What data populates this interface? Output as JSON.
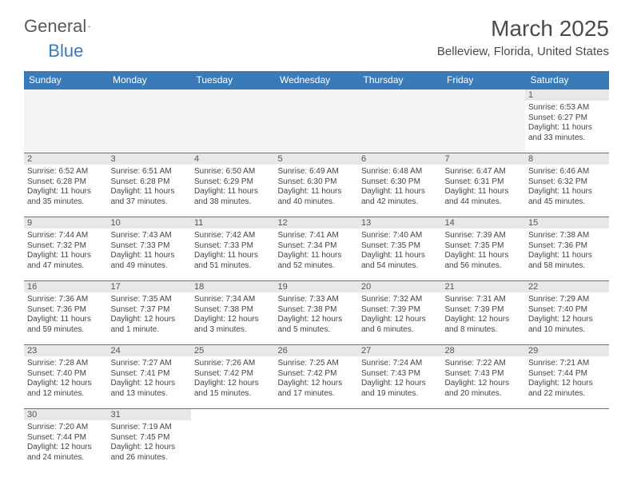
{
  "logo": {
    "general": "General",
    "blue": "Blue"
  },
  "title": "March 2025",
  "location": "Belleview, Florida, United States",
  "colors": {
    "header_bg": "#3b7ab8",
    "header_text": "#ffffff",
    "daynum_bg": "#e8e8e8",
    "border": "#3b7ab8",
    "text": "#333333",
    "title_text": "#4a4a4a"
  },
  "weekdays": [
    "Sunday",
    "Monday",
    "Tuesday",
    "Wednesday",
    "Thursday",
    "Friday",
    "Saturday"
  ],
  "weeks": [
    [
      {
        "day": null
      },
      {
        "day": null
      },
      {
        "day": null
      },
      {
        "day": null
      },
      {
        "day": null
      },
      {
        "day": null
      },
      {
        "day": "1",
        "sunrise": "Sunrise: 6:53 AM",
        "sunset": "Sunset: 6:27 PM",
        "daylight": "Daylight: 11 hours and 33 minutes."
      }
    ],
    [
      {
        "day": "2",
        "sunrise": "Sunrise: 6:52 AM",
        "sunset": "Sunset: 6:28 PM",
        "daylight": "Daylight: 11 hours and 35 minutes."
      },
      {
        "day": "3",
        "sunrise": "Sunrise: 6:51 AM",
        "sunset": "Sunset: 6:28 PM",
        "daylight": "Daylight: 11 hours and 37 minutes."
      },
      {
        "day": "4",
        "sunrise": "Sunrise: 6:50 AM",
        "sunset": "Sunset: 6:29 PM",
        "daylight": "Daylight: 11 hours and 38 minutes."
      },
      {
        "day": "5",
        "sunrise": "Sunrise: 6:49 AM",
        "sunset": "Sunset: 6:30 PM",
        "daylight": "Daylight: 11 hours and 40 minutes."
      },
      {
        "day": "6",
        "sunrise": "Sunrise: 6:48 AM",
        "sunset": "Sunset: 6:30 PM",
        "daylight": "Daylight: 11 hours and 42 minutes."
      },
      {
        "day": "7",
        "sunrise": "Sunrise: 6:47 AM",
        "sunset": "Sunset: 6:31 PM",
        "daylight": "Daylight: 11 hours and 44 minutes."
      },
      {
        "day": "8",
        "sunrise": "Sunrise: 6:46 AM",
        "sunset": "Sunset: 6:32 PM",
        "daylight": "Daylight: 11 hours and 45 minutes."
      }
    ],
    [
      {
        "day": "9",
        "sunrise": "Sunrise: 7:44 AM",
        "sunset": "Sunset: 7:32 PM",
        "daylight": "Daylight: 11 hours and 47 minutes."
      },
      {
        "day": "10",
        "sunrise": "Sunrise: 7:43 AM",
        "sunset": "Sunset: 7:33 PM",
        "daylight": "Daylight: 11 hours and 49 minutes."
      },
      {
        "day": "11",
        "sunrise": "Sunrise: 7:42 AM",
        "sunset": "Sunset: 7:33 PM",
        "daylight": "Daylight: 11 hours and 51 minutes."
      },
      {
        "day": "12",
        "sunrise": "Sunrise: 7:41 AM",
        "sunset": "Sunset: 7:34 PM",
        "daylight": "Daylight: 11 hours and 52 minutes."
      },
      {
        "day": "13",
        "sunrise": "Sunrise: 7:40 AM",
        "sunset": "Sunset: 7:35 PM",
        "daylight": "Daylight: 11 hours and 54 minutes."
      },
      {
        "day": "14",
        "sunrise": "Sunrise: 7:39 AM",
        "sunset": "Sunset: 7:35 PM",
        "daylight": "Daylight: 11 hours and 56 minutes."
      },
      {
        "day": "15",
        "sunrise": "Sunrise: 7:38 AM",
        "sunset": "Sunset: 7:36 PM",
        "daylight": "Daylight: 11 hours and 58 minutes."
      }
    ],
    [
      {
        "day": "16",
        "sunrise": "Sunrise: 7:36 AM",
        "sunset": "Sunset: 7:36 PM",
        "daylight": "Daylight: 11 hours and 59 minutes."
      },
      {
        "day": "17",
        "sunrise": "Sunrise: 7:35 AM",
        "sunset": "Sunset: 7:37 PM",
        "daylight": "Daylight: 12 hours and 1 minute."
      },
      {
        "day": "18",
        "sunrise": "Sunrise: 7:34 AM",
        "sunset": "Sunset: 7:38 PM",
        "daylight": "Daylight: 12 hours and 3 minutes."
      },
      {
        "day": "19",
        "sunrise": "Sunrise: 7:33 AM",
        "sunset": "Sunset: 7:38 PM",
        "daylight": "Daylight: 12 hours and 5 minutes."
      },
      {
        "day": "20",
        "sunrise": "Sunrise: 7:32 AM",
        "sunset": "Sunset: 7:39 PM",
        "daylight": "Daylight: 12 hours and 6 minutes."
      },
      {
        "day": "21",
        "sunrise": "Sunrise: 7:31 AM",
        "sunset": "Sunset: 7:39 PM",
        "daylight": "Daylight: 12 hours and 8 minutes."
      },
      {
        "day": "22",
        "sunrise": "Sunrise: 7:29 AM",
        "sunset": "Sunset: 7:40 PM",
        "daylight": "Daylight: 12 hours and 10 minutes."
      }
    ],
    [
      {
        "day": "23",
        "sunrise": "Sunrise: 7:28 AM",
        "sunset": "Sunset: 7:40 PM",
        "daylight": "Daylight: 12 hours and 12 minutes."
      },
      {
        "day": "24",
        "sunrise": "Sunrise: 7:27 AM",
        "sunset": "Sunset: 7:41 PM",
        "daylight": "Daylight: 12 hours and 13 minutes."
      },
      {
        "day": "25",
        "sunrise": "Sunrise: 7:26 AM",
        "sunset": "Sunset: 7:42 PM",
        "daylight": "Daylight: 12 hours and 15 minutes."
      },
      {
        "day": "26",
        "sunrise": "Sunrise: 7:25 AM",
        "sunset": "Sunset: 7:42 PM",
        "daylight": "Daylight: 12 hours and 17 minutes."
      },
      {
        "day": "27",
        "sunrise": "Sunrise: 7:24 AM",
        "sunset": "Sunset: 7:43 PM",
        "daylight": "Daylight: 12 hours and 19 minutes."
      },
      {
        "day": "28",
        "sunrise": "Sunrise: 7:22 AM",
        "sunset": "Sunset: 7:43 PM",
        "daylight": "Daylight: 12 hours and 20 minutes."
      },
      {
        "day": "29",
        "sunrise": "Sunrise: 7:21 AM",
        "sunset": "Sunset: 7:44 PM",
        "daylight": "Daylight: 12 hours and 22 minutes."
      }
    ],
    [
      {
        "day": "30",
        "sunrise": "Sunrise: 7:20 AM",
        "sunset": "Sunset: 7:44 PM",
        "daylight": "Daylight: 12 hours and 24 minutes."
      },
      {
        "day": "31",
        "sunrise": "Sunrise: 7:19 AM",
        "sunset": "Sunset: 7:45 PM",
        "daylight": "Daylight: 12 hours and 26 minutes."
      },
      {
        "day": null
      },
      {
        "day": null
      },
      {
        "day": null
      },
      {
        "day": null
      },
      {
        "day": null
      }
    ]
  ]
}
